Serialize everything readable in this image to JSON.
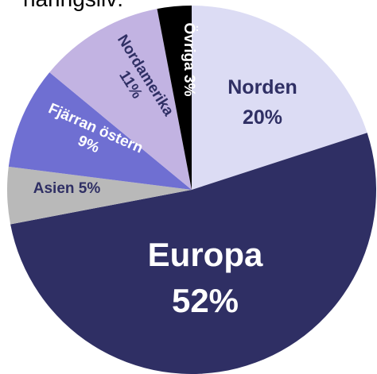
{
  "chart_data": {
    "type": "pie",
    "title": "näringsliv:",
    "categories": [
      "Norden",
      "Europa",
      "Asien",
      "Fjärran östern",
      "Nordamerika",
      "Övriga"
    ],
    "values": [
      20,
      52,
      5,
      9,
      11,
      3
    ],
    "value_labels": [
      "20%",
      "52%",
      "5%",
      "9%",
      "11%",
      "3%"
    ],
    "colors": [
      "#dcdcf4",
      "#2f2f64",
      "#b9b9b9",
      "#6f6fd2",
      "#c2b3e2",
      "#000000"
    ]
  }
}
